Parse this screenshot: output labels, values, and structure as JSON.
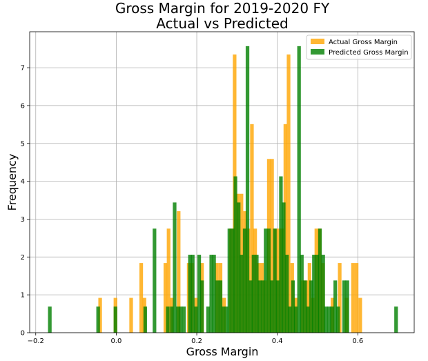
{
  "chart_data": {
    "type": "bar",
    "title_lines": [
      "Gross Margin for 2019-2020 FY",
      "Actual vs Predicted"
    ],
    "xlabel": "Gross Margin",
    "ylabel": "Frequency",
    "xlim": [
      -0.215,
      0.74
    ],
    "ylim": [
      0,
      7.95
    ],
    "xticks": [
      -0.2,
      0.0,
      0.2,
      0.4,
      0.6
    ],
    "xtick_labels": [
      "−0.2",
      "0.0",
      "0.2",
      "0.4",
      "0.6"
    ],
    "yticks": [
      0,
      1,
      2,
      3,
      4,
      5,
      6,
      7
    ],
    "ytick_labels": [
      "0",
      "1",
      "2",
      "3",
      "4",
      "5",
      "6",
      "7"
    ],
    "grid": true,
    "legend_position": "top-right",
    "bin_width": 0.009,
    "series": [
      {
        "name": "Actual Gross Margin",
        "color": "#FFA500",
        "opacity": 0.8,
        "points": [
          [
            -0.04,
            0.92
          ],
          [
            -0.002,
            0.92
          ],
          [
            0.037,
            0.92
          ],
          [
            0.062,
            1.84
          ],
          [
            0.07,
            0.92
          ],
          [
            0.122,
            1.84
          ],
          [
            0.13,
            2.75
          ],
          [
            0.138,
            0.92
          ],
          [
            0.155,
            3.21
          ],
          [
            0.18,
            1.84
          ],
          [
            0.188,
            1.84
          ],
          [
            0.198,
            0.92
          ],
          [
            0.213,
            1.84
          ],
          [
            0.25,
            1.84
          ],
          [
            0.259,
            1.84
          ],
          [
            0.268,
            0.92
          ],
          [
            0.285,
            2.75
          ],
          [
            0.294,
            7.35
          ],
          [
            0.302,
            3.67
          ],
          [
            0.311,
            3.67
          ],
          [
            0.32,
            3.21
          ],
          [
            0.328,
            2.75
          ],
          [
            0.337,
            5.51
          ],
          [
            0.345,
            2.75
          ],
          [
            0.353,
            1.84
          ],
          [
            0.362,
            1.84
          ],
          [
            0.37,
            1.38
          ],
          [
            0.379,
            4.59
          ],
          [
            0.387,
            4.59
          ],
          [
            0.396,
            2.75
          ],
          [
            0.404,
            2.75
          ],
          [
            0.412,
            2.75
          ],
          [
            0.42,
            5.51
          ],
          [
            0.428,
            7.35
          ],
          [
            0.437,
            1.84
          ],
          [
            0.446,
            0.92
          ],
          [
            0.463,
            1.38
          ],
          [
            0.472,
            1.38
          ],
          [
            0.48,
            1.84
          ],
          [
            0.488,
            0.92
          ],
          [
            0.497,
            2.75
          ],
          [
            0.505,
            2.75
          ],
          [
            0.513,
            1.84
          ],
          [
            0.537,
            0.92
          ],
          [
            0.555,
            1.84
          ],
          [
            0.572,
            0.92
          ],
          [
            0.588,
            1.84
          ],
          [
            0.597,
            1.84
          ],
          [
            0.606,
            0.92
          ]
        ]
      },
      {
        "name": "Predicted Gross Margin",
        "color": "#008000",
        "opacity": 0.8,
        "points": [
          [
            -0.165,
            0.69
          ],
          [
            -0.045,
            0.69
          ],
          [
            -0.002,
            0.69
          ],
          [
            0.072,
            0.69
          ],
          [
            0.095,
            2.75
          ],
          [
            0.128,
            0.69
          ],
          [
            0.138,
            0.69
          ],
          [
            0.145,
            3.44
          ],
          [
            0.153,
            0.69
          ],
          [
            0.16,
            0.69
          ],
          [
            0.168,
            0.69
          ],
          [
            0.183,
            2.06
          ],
          [
            0.19,
            2.06
          ],
          [
            0.198,
            0.69
          ],
          [
            0.206,
            2.06
          ],
          [
            0.213,
            1.38
          ],
          [
            0.228,
            0.69
          ],
          [
            0.236,
            2.06
          ],
          [
            0.243,
            2.06
          ],
          [
            0.251,
            1.38
          ],
          [
            0.259,
            1.38
          ],
          [
            0.266,
            0.69
          ],
          [
            0.274,
            0.69
          ],
          [
            0.281,
            2.75
          ],
          [
            0.289,
            2.75
          ],
          [
            0.296,
            4.13
          ],
          [
            0.304,
            3.44
          ],
          [
            0.311,
            2.06
          ],
          [
            0.319,
            2.75
          ],
          [
            0.326,
            7.57
          ],
          [
            0.334,
            1.38
          ],
          [
            0.341,
            2.06
          ],
          [
            0.349,
            2.06
          ],
          [
            0.356,
            1.38
          ],
          [
            0.364,
            1.38
          ],
          [
            0.371,
            2.75
          ],
          [
            0.379,
            2.75
          ],
          [
            0.386,
            1.38
          ],
          [
            0.394,
            2.75
          ],
          [
            0.401,
            1.38
          ],
          [
            0.409,
            4.13
          ],
          [
            0.416,
            3.44
          ],
          [
            0.424,
            2.06
          ],
          [
            0.431,
            0.69
          ],
          [
            0.439,
            1.38
          ],
          [
            0.446,
            0.69
          ],
          [
            0.454,
            7.57
          ],
          [
            0.461,
            2.06
          ],
          [
            0.469,
            1.38
          ],
          [
            0.476,
            0.69
          ],
          [
            0.484,
            1.38
          ],
          [
            0.491,
            2.06
          ],
          [
            0.499,
            2.06
          ],
          [
            0.506,
            2.75
          ],
          [
            0.514,
            2.06
          ],
          [
            0.521,
            0.69
          ],
          [
            0.529,
            0.69
          ],
          [
            0.536,
            0.69
          ],
          [
            0.544,
            1.38
          ],
          [
            0.551,
            0.69
          ],
          [
            0.566,
            1.38
          ],
          [
            0.574,
            1.38
          ],
          [
            0.695,
            0.69
          ]
        ]
      }
    ]
  }
}
